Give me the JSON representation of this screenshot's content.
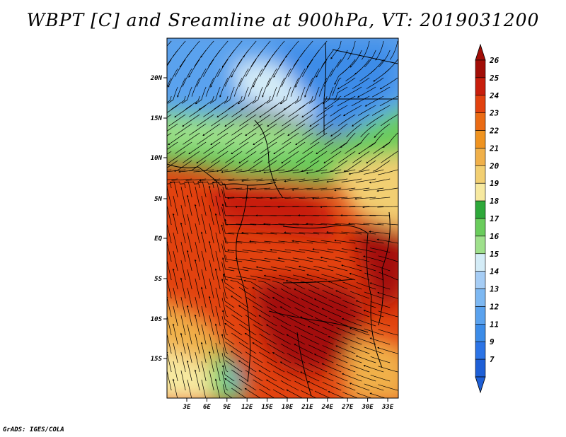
{
  "title": "WBPT [C] and Sreamline at 900hPa, VT: 2019031200",
  "credit": "GrADS: IGES/COLA",
  "map": {
    "lat_labels": [
      "20N",
      "15N",
      "10N",
      "5N",
      "EQ",
      "5S",
      "10S",
      "15S"
    ],
    "lon_labels": [
      "3E",
      "6E",
      "9E",
      "12E",
      "15E",
      "18E",
      "21E",
      "24E",
      "27E",
      "30E",
      "33E"
    ],
    "fields": [
      "wet-bulb potential temperature",
      "streamlines"
    ]
  },
  "colorbar": {
    "labels": [
      "7",
      "9",
      "11",
      "12",
      "13",
      "14",
      "15",
      "16",
      "17",
      "18",
      "19",
      "20",
      "21",
      "22",
      "23",
      "24",
      "25",
      "26"
    ],
    "colors": [
      "#1e5fd6",
      "#2c74e6",
      "#3c8ce8",
      "#5aa2ee",
      "#7db8f2",
      "#a6cdf5",
      "#d4ecf7",
      "#9fe08c",
      "#6acc5c",
      "#2ea83a",
      "#f7e9a0",
      "#f2cf72",
      "#f0b04a",
      "#ef9320",
      "#ea6b14",
      "#e2420f",
      "#c81e0c",
      "#a20e07"
    ]
  }
}
